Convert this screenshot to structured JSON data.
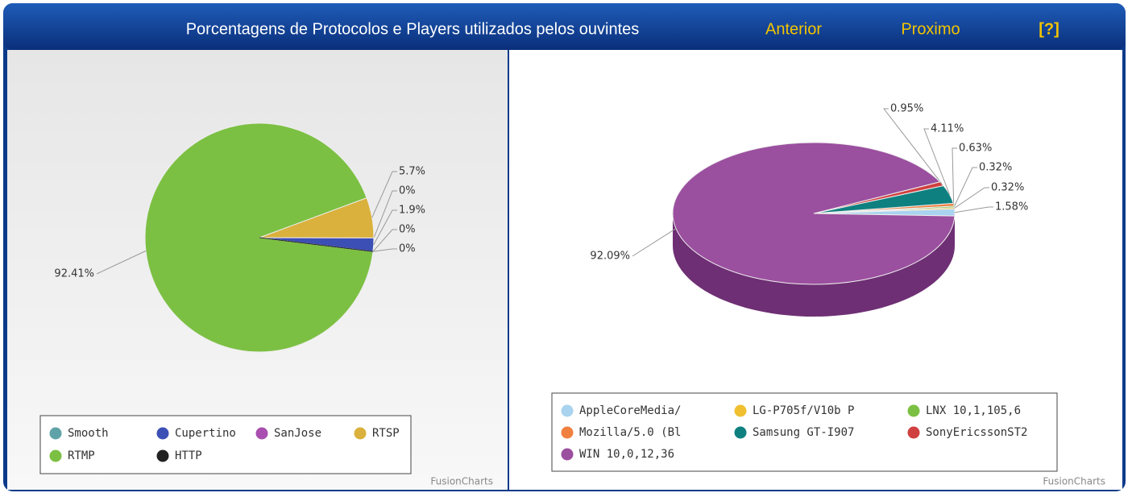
{
  "header": {
    "title": "Porcentagens de Protocolos e Players utilizados pelos ouvintes",
    "prev": "Anterior",
    "next": "Proximo",
    "help": "[?]"
  },
  "watermarks": [
    "FusionCharts",
    "FusionCharts"
  ],
  "chart_data": [
    {
      "type": "pie",
      "categories": [
        "Smooth",
        "Cupertino",
        "SanJose",
        "RTSP",
        "RTMP",
        "HTTP"
      ],
      "values": [
        0,
        1.9,
        0,
        5.7,
        92.41,
        0
      ],
      "value_labels": [
        "0%",
        "1.9%",
        "0%",
        "5.7%",
        "92.41%",
        "0%"
      ],
      "colors": [
        "#5fa3a8",
        "#3c4fb5",
        "#a94fb0",
        "#d9b13c",
        "#7cc043",
        "#222222"
      ]
    },
    {
      "type": "pie3d",
      "categories": [
        "AppleCoreMedia/",
        "LG-P705f/V10b P",
        "LNX 10,1,105,6",
        "Mozilla/5.0 (Bl",
        "Samsung GT-I907",
        "SonyEricssonST2",
        "WIN 10,0,12,36"
      ],
      "values": [
        1.58,
        0.32,
        0.32,
        0.63,
        4.11,
        0.95,
        92.09
      ],
      "value_labels": [
        "1.58%",
        "0.32%",
        "0.32%",
        "0.63%",
        "4.11%",
        "0.95%",
        "92.09%"
      ],
      "colors": [
        "#a9d3ef",
        "#f0c030",
        "#7cc043",
        "#f08040",
        "#0f8080",
        "#d04040",
        "#9b4f9f"
      ]
    }
  ]
}
